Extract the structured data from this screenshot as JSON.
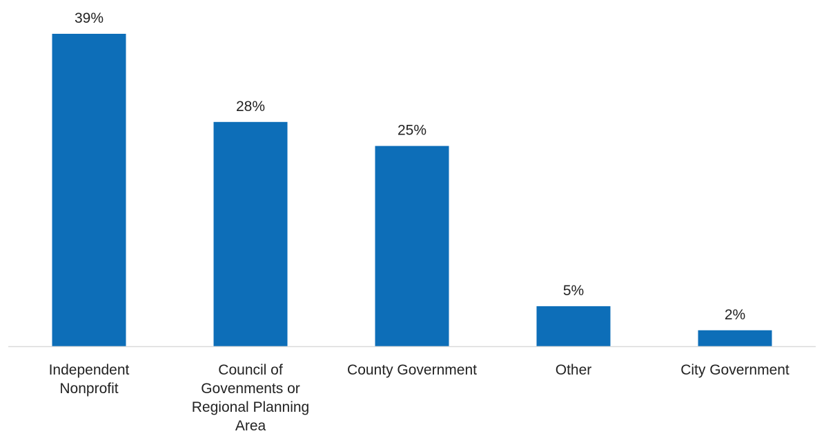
{
  "chart_data": {
    "type": "bar",
    "categories": [
      [
        "Independent",
        "Nonprofit"
      ],
      [
        "Council of",
        "Govenments or",
        "Regional Planning",
        "Area"
      ],
      [
        "County Government"
      ],
      [
        "Other"
      ],
      [
        "City Government"
      ]
    ],
    "values": [
      39,
      28,
      25,
      5,
      2
    ],
    "data_labels": [
      "39%",
      "28%",
      "25%",
      "5%",
      "2%"
    ],
    "ylim": [
      0,
      39
    ],
    "grid": false,
    "legend": "none",
    "colors": {
      "bar": "#0D6EB8",
      "axis": "#D9D9D9",
      "text": "#222222"
    }
  }
}
